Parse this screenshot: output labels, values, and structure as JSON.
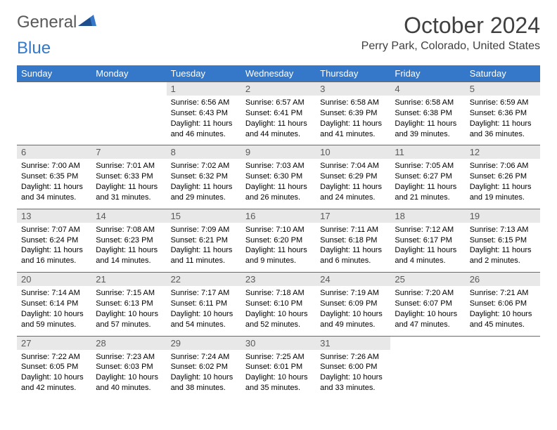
{
  "brand": {
    "part1": "General",
    "part2": "Blue"
  },
  "title": "October 2024",
  "location": "Perry Park, Colorado, United States",
  "colors": {
    "header_bg": "#3578c9",
    "header_text": "#ffffff",
    "daynum_bg": "#e8e8e8",
    "daynum_text": "#5a5a5a",
    "daynum_border": "#6a6a6a",
    "body_text": "#000000",
    "title_text": "#404040",
    "page_bg": "#ffffff"
  },
  "typography": {
    "title_fontsize": 32,
    "location_fontsize": 16,
    "header_fontsize": 13,
    "daynum_fontsize": 13,
    "cell_fontsize": 11
  },
  "day_headers": [
    "Sunday",
    "Monday",
    "Tuesday",
    "Wednesday",
    "Thursday",
    "Friday",
    "Saturday"
  ],
  "weeks": [
    {
      "nums": [
        "",
        "",
        "1",
        "2",
        "3",
        "4",
        "5"
      ],
      "cells": [
        null,
        null,
        {
          "sunrise": "Sunrise: 6:56 AM",
          "sunset": "Sunset: 6:43 PM",
          "day1": "Daylight: 11 hours",
          "day2": "and 46 minutes."
        },
        {
          "sunrise": "Sunrise: 6:57 AM",
          "sunset": "Sunset: 6:41 PM",
          "day1": "Daylight: 11 hours",
          "day2": "and 44 minutes."
        },
        {
          "sunrise": "Sunrise: 6:58 AM",
          "sunset": "Sunset: 6:39 PM",
          "day1": "Daylight: 11 hours",
          "day2": "and 41 minutes."
        },
        {
          "sunrise": "Sunrise: 6:58 AM",
          "sunset": "Sunset: 6:38 PM",
          "day1": "Daylight: 11 hours",
          "day2": "and 39 minutes."
        },
        {
          "sunrise": "Sunrise: 6:59 AM",
          "sunset": "Sunset: 6:36 PM",
          "day1": "Daylight: 11 hours",
          "day2": "and 36 minutes."
        }
      ]
    },
    {
      "nums": [
        "6",
        "7",
        "8",
        "9",
        "10",
        "11",
        "12"
      ],
      "cells": [
        {
          "sunrise": "Sunrise: 7:00 AM",
          "sunset": "Sunset: 6:35 PM",
          "day1": "Daylight: 11 hours",
          "day2": "and 34 minutes."
        },
        {
          "sunrise": "Sunrise: 7:01 AM",
          "sunset": "Sunset: 6:33 PM",
          "day1": "Daylight: 11 hours",
          "day2": "and 31 minutes."
        },
        {
          "sunrise": "Sunrise: 7:02 AM",
          "sunset": "Sunset: 6:32 PM",
          "day1": "Daylight: 11 hours",
          "day2": "and 29 minutes."
        },
        {
          "sunrise": "Sunrise: 7:03 AM",
          "sunset": "Sunset: 6:30 PM",
          "day1": "Daylight: 11 hours",
          "day2": "and 26 minutes."
        },
        {
          "sunrise": "Sunrise: 7:04 AM",
          "sunset": "Sunset: 6:29 PM",
          "day1": "Daylight: 11 hours",
          "day2": "and 24 minutes."
        },
        {
          "sunrise": "Sunrise: 7:05 AM",
          "sunset": "Sunset: 6:27 PM",
          "day1": "Daylight: 11 hours",
          "day2": "and 21 minutes."
        },
        {
          "sunrise": "Sunrise: 7:06 AM",
          "sunset": "Sunset: 6:26 PM",
          "day1": "Daylight: 11 hours",
          "day2": "and 19 minutes."
        }
      ]
    },
    {
      "nums": [
        "13",
        "14",
        "15",
        "16",
        "17",
        "18",
        "19"
      ],
      "cells": [
        {
          "sunrise": "Sunrise: 7:07 AM",
          "sunset": "Sunset: 6:24 PM",
          "day1": "Daylight: 11 hours",
          "day2": "and 16 minutes."
        },
        {
          "sunrise": "Sunrise: 7:08 AM",
          "sunset": "Sunset: 6:23 PM",
          "day1": "Daylight: 11 hours",
          "day2": "and 14 minutes."
        },
        {
          "sunrise": "Sunrise: 7:09 AM",
          "sunset": "Sunset: 6:21 PM",
          "day1": "Daylight: 11 hours",
          "day2": "and 11 minutes."
        },
        {
          "sunrise": "Sunrise: 7:10 AM",
          "sunset": "Sunset: 6:20 PM",
          "day1": "Daylight: 11 hours",
          "day2": "and 9 minutes."
        },
        {
          "sunrise": "Sunrise: 7:11 AM",
          "sunset": "Sunset: 6:18 PM",
          "day1": "Daylight: 11 hours",
          "day2": "and 6 minutes."
        },
        {
          "sunrise": "Sunrise: 7:12 AM",
          "sunset": "Sunset: 6:17 PM",
          "day1": "Daylight: 11 hours",
          "day2": "and 4 minutes."
        },
        {
          "sunrise": "Sunrise: 7:13 AM",
          "sunset": "Sunset: 6:15 PM",
          "day1": "Daylight: 11 hours",
          "day2": "and 2 minutes."
        }
      ]
    },
    {
      "nums": [
        "20",
        "21",
        "22",
        "23",
        "24",
        "25",
        "26"
      ],
      "cells": [
        {
          "sunrise": "Sunrise: 7:14 AM",
          "sunset": "Sunset: 6:14 PM",
          "day1": "Daylight: 10 hours",
          "day2": "and 59 minutes."
        },
        {
          "sunrise": "Sunrise: 7:15 AM",
          "sunset": "Sunset: 6:13 PM",
          "day1": "Daylight: 10 hours",
          "day2": "and 57 minutes."
        },
        {
          "sunrise": "Sunrise: 7:17 AM",
          "sunset": "Sunset: 6:11 PM",
          "day1": "Daylight: 10 hours",
          "day2": "and 54 minutes."
        },
        {
          "sunrise": "Sunrise: 7:18 AM",
          "sunset": "Sunset: 6:10 PM",
          "day1": "Daylight: 10 hours",
          "day2": "and 52 minutes."
        },
        {
          "sunrise": "Sunrise: 7:19 AM",
          "sunset": "Sunset: 6:09 PM",
          "day1": "Daylight: 10 hours",
          "day2": "and 49 minutes."
        },
        {
          "sunrise": "Sunrise: 7:20 AM",
          "sunset": "Sunset: 6:07 PM",
          "day1": "Daylight: 10 hours",
          "day2": "and 47 minutes."
        },
        {
          "sunrise": "Sunrise: 7:21 AM",
          "sunset": "Sunset: 6:06 PM",
          "day1": "Daylight: 10 hours",
          "day2": "and 45 minutes."
        }
      ]
    },
    {
      "nums": [
        "27",
        "28",
        "29",
        "30",
        "31",
        "",
        ""
      ],
      "cells": [
        {
          "sunrise": "Sunrise: 7:22 AM",
          "sunset": "Sunset: 6:05 PM",
          "day1": "Daylight: 10 hours",
          "day2": "and 42 minutes."
        },
        {
          "sunrise": "Sunrise: 7:23 AM",
          "sunset": "Sunset: 6:03 PM",
          "day1": "Daylight: 10 hours",
          "day2": "and 40 minutes."
        },
        {
          "sunrise": "Sunrise: 7:24 AM",
          "sunset": "Sunset: 6:02 PM",
          "day1": "Daylight: 10 hours",
          "day2": "and 38 minutes."
        },
        {
          "sunrise": "Sunrise: 7:25 AM",
          "sunset": "Sunset: 6:01 PM",
          "day1": "Daylight: 10 hours",
          "day2": "and 35 minutes."
        },
        {
          "sunrise": "Sunrise: 7:26 AM",
          "sunset": "Sunset: 6:00 PM",
          "day1": "Daylight: 10 hours",
          "day2": "and 33 minutes."
        },
        null,
        null
      ]
    }
  ]
}
